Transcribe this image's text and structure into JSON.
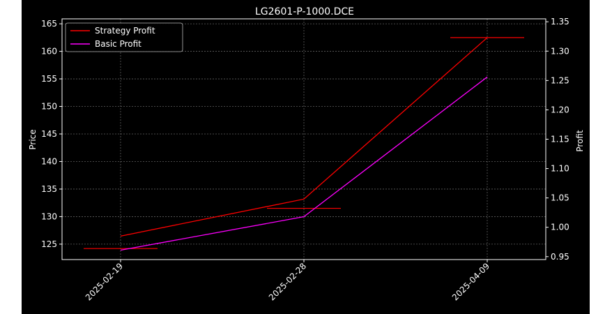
{
  "chart_data": {
    "type": "line",
    "title": "LG2601-P-1000.DCE",
    "xlabel": "",
    "ylabel_left": "Price",
    "ylabel_right": "Profit",
    "categories": [
      "2025-02-19",
      "2025-02-28",
      "2025-04-09"
    ],
    "y_left": {
      "ticks": [
        125,
        130,
        135,
        140,
        145,
        150,
        155,
        160,
        165
      ],
      "range": [
        122.2,
        165.9
      ]
    },
    "y_right": {
      "ticks": [
        0.95,
        1.0,
        1.05,
        1.1,
        1.15,
        1.2,
        1.25,
        1.3,
        1.35
      ],
      "range": [
        0.945,
        1.355
      ]
    },
    "grid": true,
    "legend_position": "top-left",
    "series": [
      {
        "name": "Strategy Profit",
        "axis": "right",
        "color": "#ff0000",
        "values": [
          0.985,
          1.048,
          1.323
        ]
      },
      {
        "name": "Basic Profit",
        "axis": "right",
        "color": "#ff00ff",
        "values": [
          0.961,
          1.018,
          1.256
        ]
      }
    ],
    "price_levels": {
      "axis": "left",
      "color": "#ff0000",
      "values": [
        124.2,
        131.5,
        162.5
      ]
    }
  }
}
